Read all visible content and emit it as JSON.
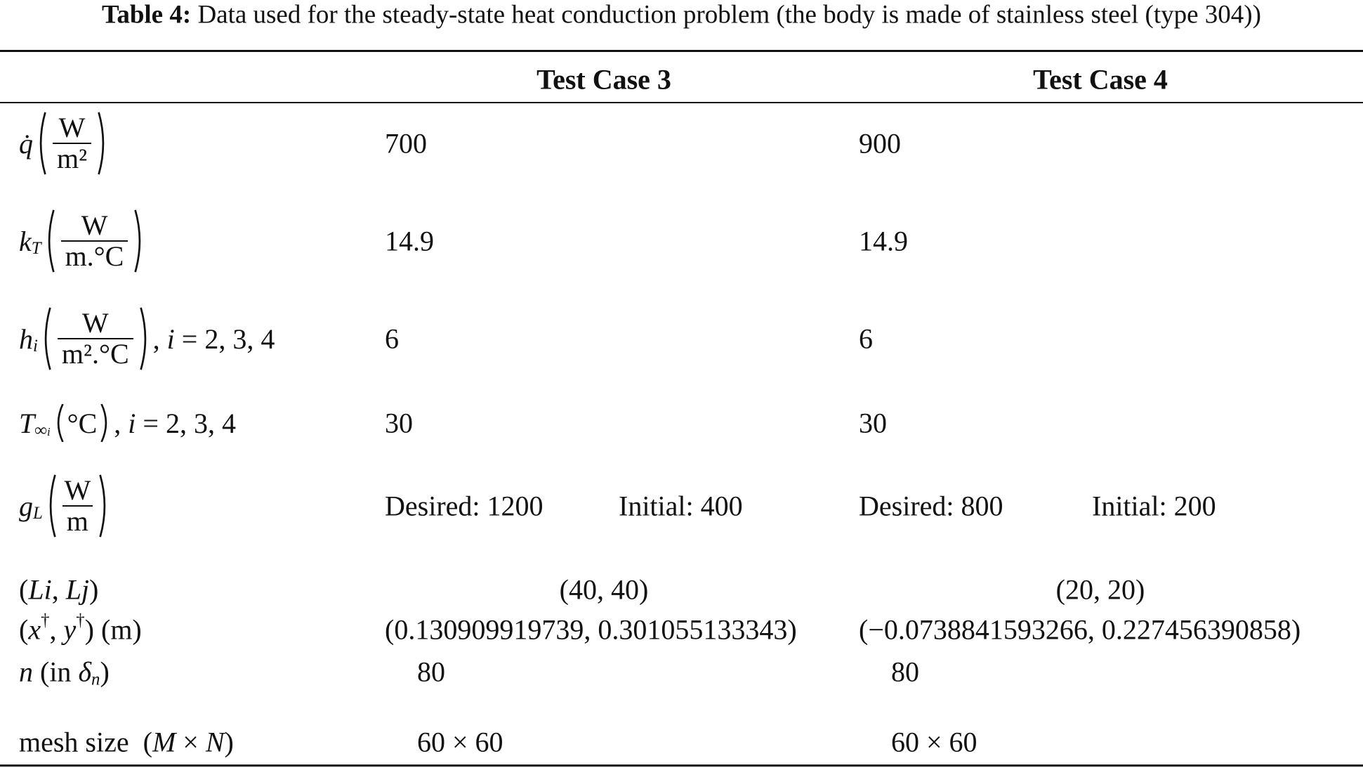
{
  "caption": {
    "label": "Table 4:",
    "text": "Data used for the steady-state heat conduction problem (the body is made of stainless steel (type 304))"
  },
  "table": {
    "header": [
      "Test Case 3",
      "Test Case 4"
    ],
    "rows": [
      {
        "label": {
          "symbol": "q̇",
          "numerator": "W",
          "denominator": "m²"
        },
        "cells": [
          "700",
          "900"
        ]
      },
      {
        "label": {
          "symbol": "k",
          "sub": "T",
          "numerator": "W",
          "denominator": "m.°C"
        },
        "cells": [
          "14.9",
          "14.9"
        ]
      },
      {
        "label": {
          "symbol": "h",
          "sub": "i",
          "numerator": "W",
          "denominator": "m².°C",
          "suffix": [
            ", ",
            "i",
            " = 2, 3, 4"
          ]
        },
        "cells": [
          "6",
          "6"
        ]
      },
      {
        "label": {
          "symbol": "T",
          "sub": "∞",
          "subsub": "i",
          "unit": "°C",
          "suffix": [
            ", ",
            "i",
            " = 2, 3, 4"
          ]
        },
        "cells": [
          "30",
          "30"
        ]
      },
      {
        "label": {
          "symbol": "g",
          "sub": "L",
          "numerator": "W",
          "denominator": "m"
        },
        "cells": [
          [
            "Desired: 1200",
            "Initial: 400"
          ],
          [
            "Desired: 800",
            "Initial: 200"
          ]
        ]
      },
      {
        "label": {
          "parts": [
            "(",
            "Li",
            ", ",
            "Lj",
            ")"
          ]
        },
        "cells": [
          "(40, 40)",
          "(20, 20)"
        ]
      },
      {
        "label": {
          "parts": [
            "(",
            "x",
            "†",
            ", ",
            "y",
            "†",
            ") (m)"
          ]
        },
        "cells": [
          "(0.130909919739, 0.301055133343)",
          "(−0.0738841593266, 0.227456390858)"
        ]
      },
      {
        "label": {
          "parts": [
            "n",
            " (in ",
            "δ",
            "n",
            ")"
          ]
        },
        "cells": [
          "80",
          "80"
        ]
      },
      {
        "label": {
          "parts": [
            "mesh size  (",
            "M",
            " × ",
            "N",
            ")"
          ]
        },
        "cells": [
          "60 × 60",
          "60 × 60"
        ]
      }
    ]
  }
}
